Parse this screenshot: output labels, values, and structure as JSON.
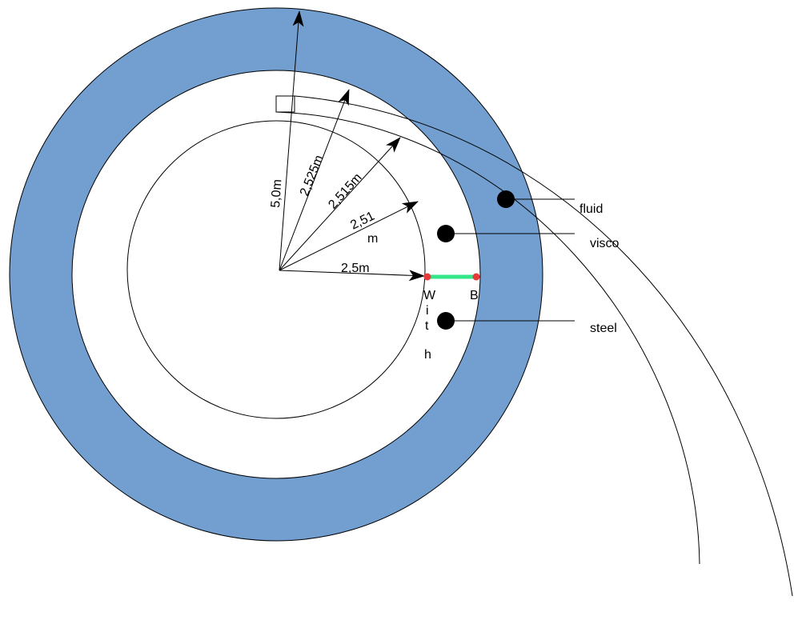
{
  "colors": {
    "ring_fill": "#729fcf",
    "outline": "#000000",
    "connector": "#33e68a",
    "endpoint": "#e63a3a",
    "background": "#ffffff"
  },
  "radius_labels": {
    "r_outer": "5,0m",
    "r_2525": "2,525m",
    "r_2515": "2,515m",
    "r_251_line1": "2,51",
    "r_251_line2": "m",
    "r_inner": "2,5m"
  },
  "point_labels": {
    "w_letters": [
      "W",
      "i",
      "t",
      "h"
    ],
    "b": "B"
  },
  "legend": {
    "fluid": "fluid",
    "visco": "visco",
    "steel": "steel"
  }
}
